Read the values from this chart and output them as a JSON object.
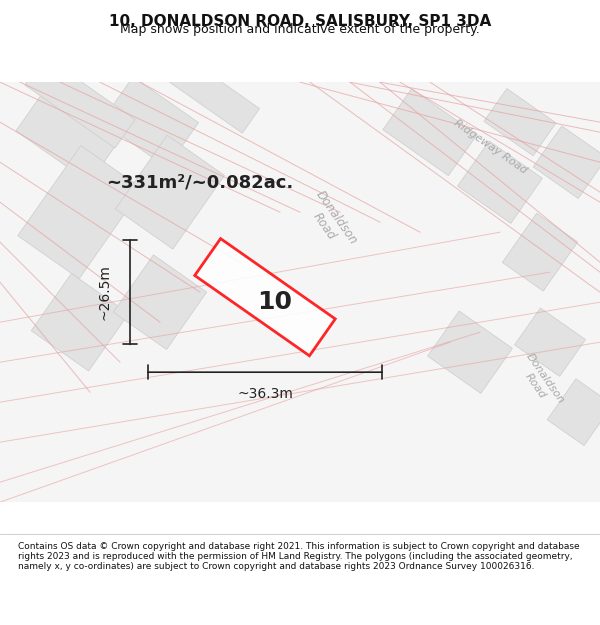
{
  "title": "10, DONALDSON ROAD, SALISBURY, SP1 3DA",
  "subtitle": "Map shows position and indicative extent of the property.",
  "footer": "Contains OS data © Crown copyright and database right 2021. This information is subject to Crown copyright and database rights 2023 and is reproduced with the permission of HM Land Registry. The polygons (including the associated geometry, namely x, y co-ordinates) are subject to Crown copyright and database rights 2023 Ordnance Survey 100026316.",
  "area_label": "~331m²/~0.082ac.",
  "width_label": "~36.3m",
  "height_label": "~26.5m",
  "property_number": "10",
  "bg_color": "#f5f5f5",
  "map_bg": "#f5f5f5",
  "road_fill": "#e8e8e8",
  "building_fill": "#e0e0e0",
  "road_line_color": "#cccccc",
  "pink_road_color": "#e8a0a0",
  "red_polygon_color": "#ff0000",
  "annotation_color": "#222222",
  "road_label_color": "#aaaaaa",
  "title_color": "#111111",
  "footer_color": "#111111"
}
